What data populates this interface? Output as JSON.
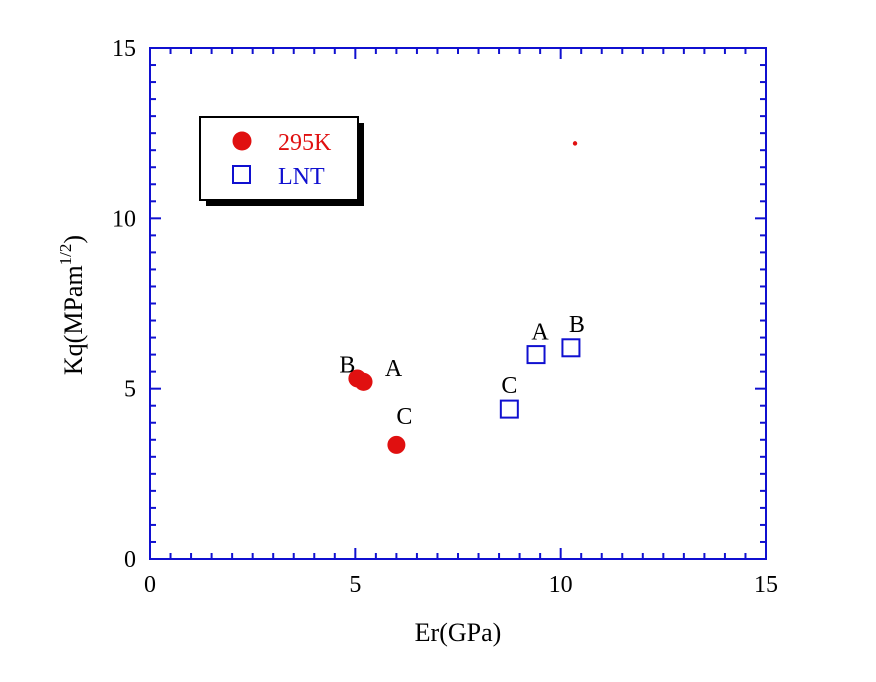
{
  "chart_data": {
    "type": "scatter",
    "xlabel": "Er(GPa)",
    "ylabel_main": "Kq(MPam",
    "ylabel_sup": "1/2",
    "ylabel_close": ")",
    "xlim": [
      0,
      15
    ],
    "ylim": [
      0,
      15
    ],
    "xticks": [
      0,
      5,
      10,
      15
    ],
    "yticks": [
      0,
      5,
      10,
      15
    ],
    "xtick_labels": [
      "0",
      "5",
      "10",
      "15"
    ],
    "ytick_labels": [
      "0",
      "5",
      "10",
      "15"
    ],
    "minor_step": 0.5,
    "grid": false,
    "legend_position": "top-left",
    "series": [
      {
        "name": "295K",
        "marker": "filled-circle",
        "color": "#e01010",
        "points": [
          {
            "label": "A",
            "x": 5.2,
            "y": 5.2
          },
          {
            "label": "B",
            "x": 5.05,
            "y": 5.3
          },
          {
            "label": "C",
            "x": 6.0,
            "y": 3.35
          }
        ]
      },
      {
        "name": "LNT",
        "marker": "open-square",
        "color": "#1010d0",
        "points": [
          {
            "label": "A",
            "x": 9.4,
            "y": 6.0
          },
          {
            "label": "B",
            "x": 10.25,
            "y": 6.2
          },
          {
            "label": "C",
            "x": 8.75,
            "y": 4.4
          }
        ]
      }
    ],
    "stray_dot": {
      "x": 10.35,
      "y": 12.2,
      "color": "#e01010"
    }
  }
}
